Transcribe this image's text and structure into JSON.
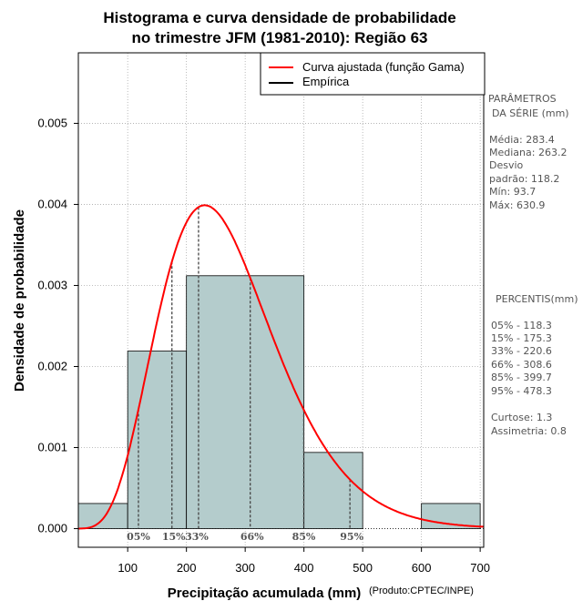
{
  "title": {
    "line1": "Histograma e curva densidade de probabilidade",
    "line2": "no trimestre JFM (1981-2010): Região 63"
  },
  "credit": "(Produto:CPTEC/INPE)",
  "colors": {
    "bar_fill": "#b4cccc",
    "curve": "#ff0000",
    "grid": "#aaaaaa",
    "percentile_line": "#444444",
    "side_text": "#555555"
  },
  "legend": {
    "items": [
      {
        "label": "Curva ajustada (função Gama)",
        "color": "#ff0000"
      },
      {
        "label": "Empírica",
        "color": "#000000"
      }
    ]
  },
  "side_panel": {
    "params_header": [
      "PARÂMETROS",
      "DA SÉRIE (mm)"
    ],
    "stats": [
      "Média:  283.4",
      "Mediana:  263.2",
      "Desvio",
      "padrão:  118.2",
      "Mín:  93.7",
      "Máx:  630.9"
    ],
    "percentis_header": "PERCENTIS(mm)",
    "percentis": [
      "05% -   118.3",
      "15% -   175.3",
      "33% -   220.6",
      "66% -   308.6",
      "85% -   399.7",
      "95% -   478.3"
    ],
    "shape": [
      "Curtose:  1.3",
      "Assimetria:  0.8"
    ]
  },
  "chart_data": {
    "type": "bar",
    "title": "Histograma e curva densidade de probabilidade no trimestre JFM (1981-2010): Região 63",
    "xlabel": "Precipitação acumulada (mm)",
    "ylabel": "Densidade de probabilidade",
    "xlim": [
      16,
      706
    ],
    "ylim": [
      -0.00023,
      0.00587
    ],
    "x_ticks": [
      100,
      200,
      300,
      400,
      500,
      600,
      700
    ],
    "y_ticks": [
      0.0,
      0.001,
      0.002,
      0.003,
      0.004,
      0.005
    ],
    "x_tick_labels": [
      "100",
      "200",
      "300",
      "400",
      "500",
      "600",
      "700"
    ],
    "y_tick_labels": [
      "0.000",
      "0.001",
      "0.002",
      "0.003",
      "0.004",
      "0.005"
    ],
    "grid": true,
    "legend_position": "top-right",
    "histogram": [
      {
        "x0": 0,
        "x1": 100,
        "density": 0.00031
      },
      {
        "x0": 100,
        "x1": 200,
        "density": 0.00219
      },
      {
        "x0": 200,
        "x1": 400,
        "density": 0.00312
      },
      {
        "x0": 400,
        "x1": 500,
        "density": 0.00094
      },
      {
        "x0": 600,
        "x1": 700,
        "density": 0.00031
      }
    ],
    "gamma_fit": {
      "shape": 6.5,
      "scale": 42.0
    },
    "percentiles": [
      {
        "label": "05%",
        "value": 118.3
      },
      {
        "label": "15%",
        "value": 175.3
      },
      {
        "label": "33%",
        "value": 220.6
      },
      {
        "label": "66%",
        "value": 308.6
      },
      {
        "label": "85%",
        "value": 399.7
      },
      {
        "label": "95%",
        "value": 478.3
      }
    ]
  }
}
